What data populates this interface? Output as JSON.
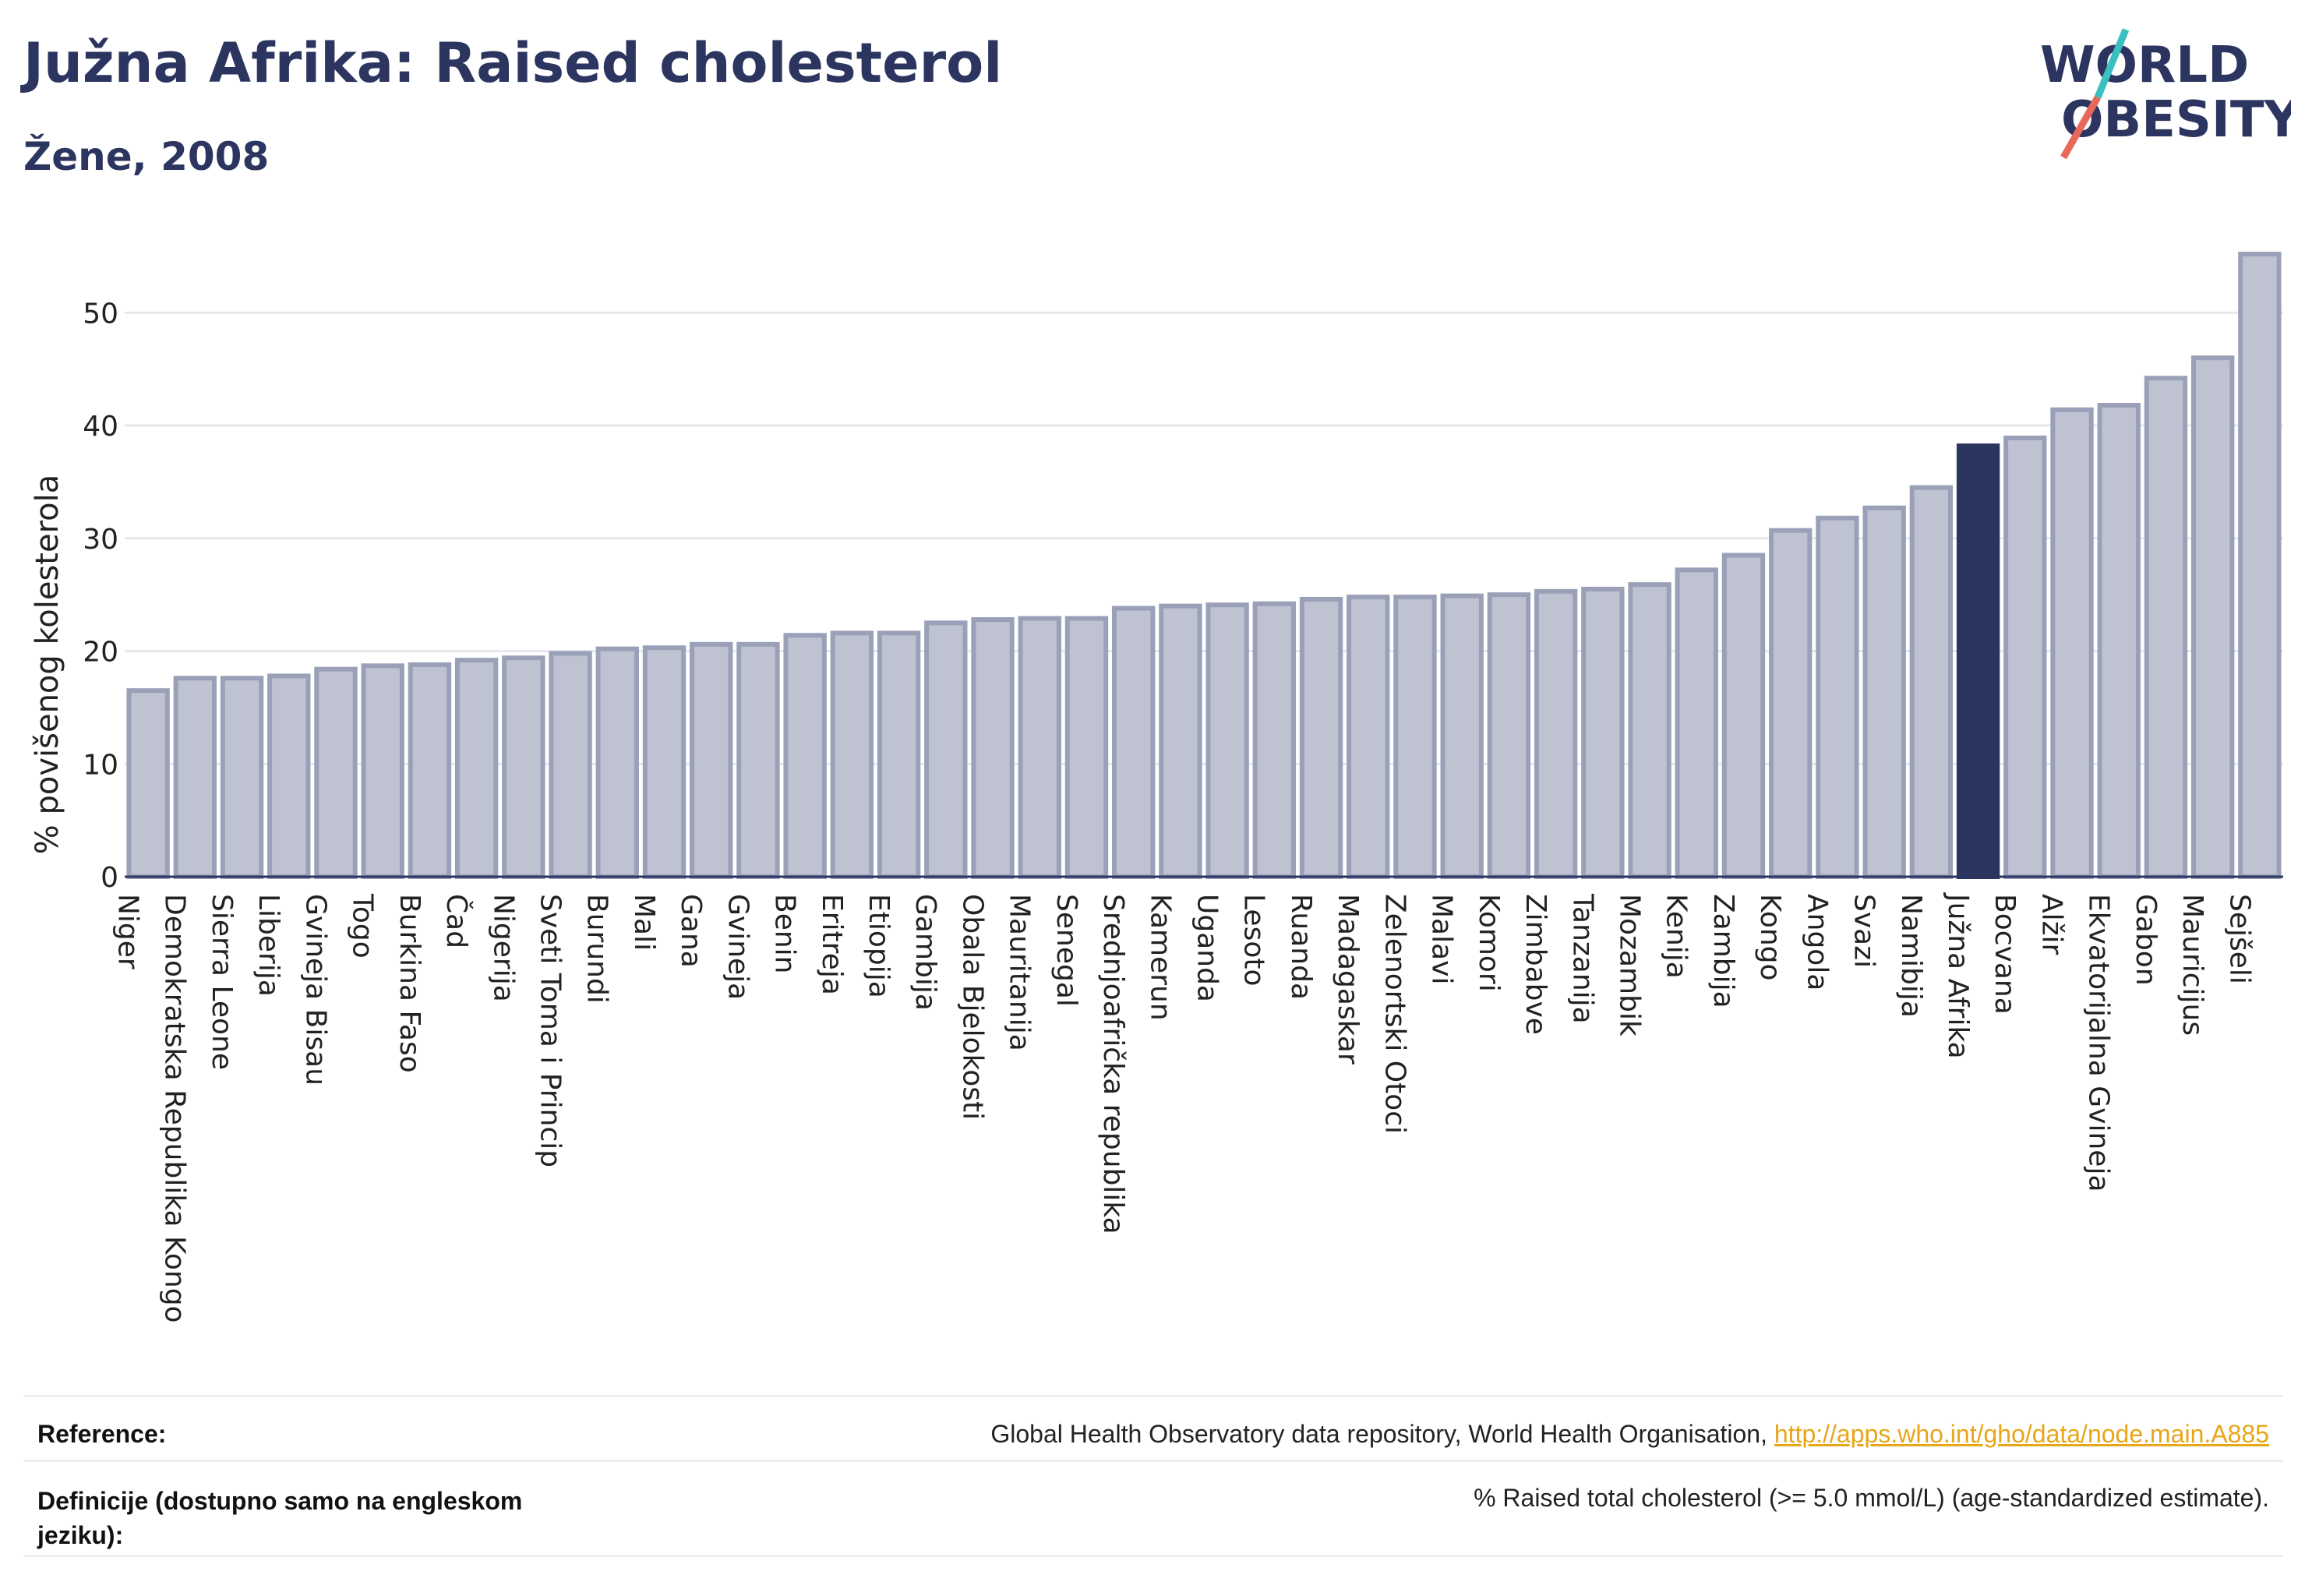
{
  "header": {
    "title": "Južna Afrika: Raised cholesterol",
    "subtitle": "Žene, 2008"
  },
  "logo": {
    "line1": "WORLD",
    "line2": "OBESITY",
    "accent_teal": "#3bbfbf",
    "accent_coral": "#e8685a",
    "text_color": "#2b3560"
  },
  "colors": {
    "bar": "#bfc3d1",
    "bar_border": "#9aa0b8",
    "highlight": "#2b3560",
    "grid": "#e6e8ee",
    "axis": "#2b3560"
  },
  "chart_data": {
    "type": "bar",
    "ylabel": "% povišenog kolesterola",
    "yticks": [
      0,
      10,
      20,
      30,
      40,
      50
    ],
    "ylim": [
      0,
      57
    ],
    "grid": true,
    "highlight": "Južna Afrika",
    "categories": [
      "Niger",
      "Demokratska Republika Kongo",
      "Sierra Leone",
      "Liberija",
      "Gvineja Bisau",
      "Togo",
      "Burkina Faso",
      "Čad",
      "Nigerija",
      "Sveti Toma i Princip",
      "Burundi",
      "Mali",
      "Gana",
      "Gvineja",
      "Benin",
      "Eritreja",
      "Etiopija",
      "Gambija",
      "Obala Bjelokosti",
      "Mauritanija",
      "Senegal",
      "Srednjoafrička republika",
      "Kamerun",
      "Uganda",
      "Lesoto",
      "Ruanda",
      "Madagaskar",
      "Zelenortski Otoci",
      "Malavi",
      "Komori",
      "Zimbabve",
      "Tanzanija",
      "Mozambik",
      "Kenija",
      "Zambija",
      "Kongo",
      "Angola",
      "Svazi",
      "Namibija",
      "Južna Afrika",
      "Bocvana",
      "Alžir",
      "Ekvatorijalna Gvineja",
      "Gabon",
      "Mauricijus",
      "Sejšeli"
    ],
    "values": [
      16.5,
      17.6,
      17.6,
      17.8,
      18.4,
      18.7,
      18.8,
      19.2,
      19.4,
      19.8,
      20.2,
      20.3,
      20.6,
      20.6,
      21.4,
      21.6,
      21.6,
      22.5,
      22.8,
      22.9,
      22.9,
      23.8,
      24.0,
      24.1,
      24.2,
      24.6,
      24.8,
      24.8,
      24.9,
      25.0,
      25.3,
      25.5,
      25.9,
      27.2,
      28.5,
      30.7,
      31.8,
      32.7,
      34.5,
      38.2,
      38.9,
      41.4,
      41.8,
      44.2,
      46.0,
      55.2
    ]
  },
  "footer": {
    "reference_label": "Reference:",
    "reference_text": "Global Health Observatory data repository, World Health Organisation, ",
    "reference_link": "http://apps.who.int/gho/data/node.main.A885",
    "definition_label": "Definicije (dostupno samo na engleskom jeziku):",
    "definition_text": "% Raised total cholesterol (>= 5.0 mmol/L) (age-standardized estimate)."
  }
}
